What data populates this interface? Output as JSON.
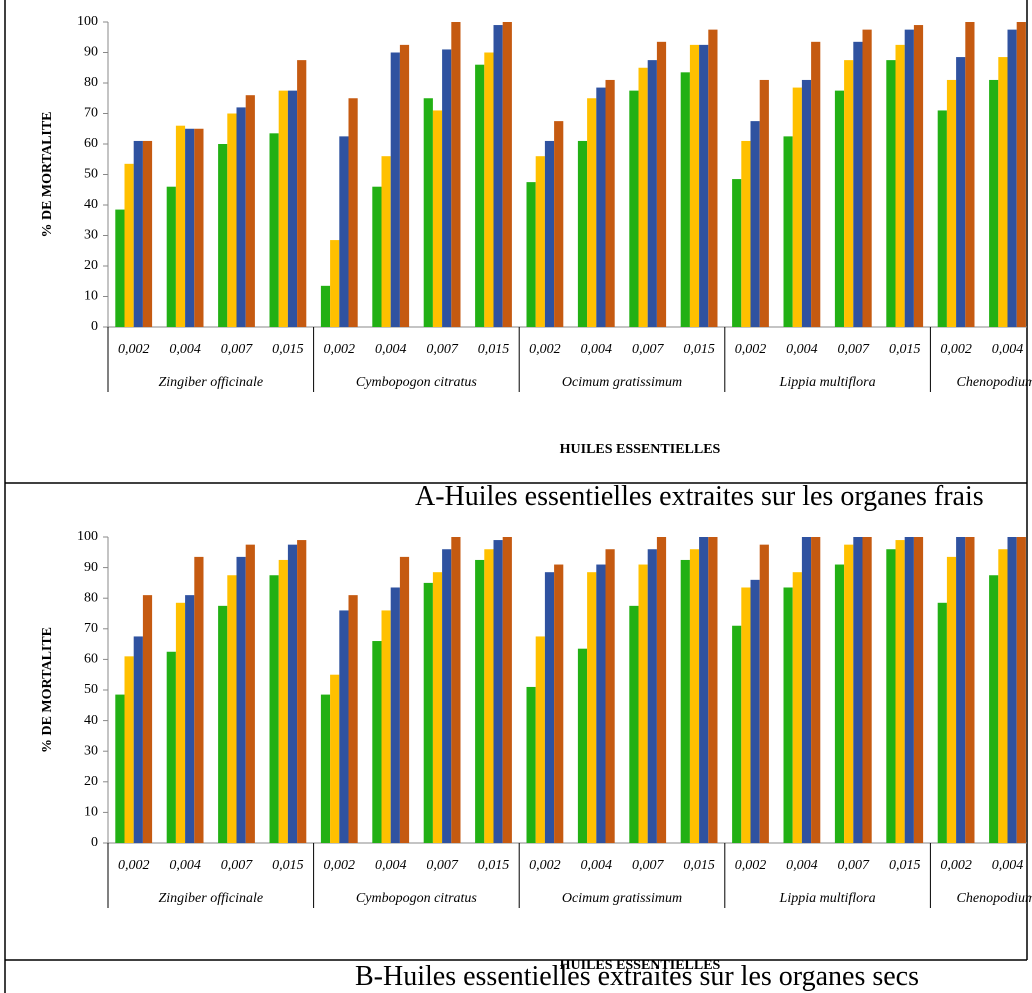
{
  "chart_data": [
    {
      "type": "bar",
      "y_label": "% DE MORTALITE",
      "x_label": "HUILES ESSENTIELLES",
      "caption": "A-Huiles essentielles extraites sur les organes frais",
      "categories": [
        "0,002",
        "0,004",
        "0,007",
        "0,015",
        "0,002",
        "0,004",
        "0,007",
        "0,015",
        "0,002",
        "0,004",
        "0,007",
        "0,015",
        "0,002",
        "0,004",
        "0,007",
        "0,015",
        "0,002",
        "0,004"
      ],
      "groups": [
        "Zingiber officinale",
        "Cymbopogon citratus",
        "Ocimum gratissimum",
        "Lippia multiflora",
        "Chenopodium"
      ],
      "series": [
        {
          "color": "#22b014",
          "values": [
            38.5,
            46,
            60,
            63.5,
            13.5,
            46,
            75,
            86,
            47.5,
            61,
            77.5,
            83.5,
            48.5,
            62.5,
            77.5,
            87.5,
            71,
            81
          ]
        },
        {
          "color": "#ffc000",
          "values": [
            53.5,
            66,
            70,
            77.5,
            28.5,
            56,
            71,
            90,
            56,
            75,
            85,
            92.5,
            61,
            78.5,
            87.5,
            92.5,
            81,
            88.5
          ]
        },
        {
          "color": "#2f52a0",
          "values": [
            61,
            65,
            72,
            77.5,
            62.5,
            90,
            91,
            99,
            61,
            78.5,
            87.5,
            92.5,
            67.5,
            81,
            93.5,
            97.5,
            88.5,
            97.5
          ]
        },
        {
          "color": "#c55a11",
          "values": [
            61,
            65,
            76,
            87.5,
            75,
            92.5,
            100,
            100,
            67.5,
            81,
            93.5,
            97.5,
            81,
            93.5,
            97.5,
            99,
            100,
            100
          ]
        }
      ],
      "ylim": [
        0,
        100
      ],
      "yticks": [
        0,
        10,
        20,
        30,
        40,
        50,
        60,
        70,
        80,
        90,
        100
      ]
    },
    {
      "type": "bar",
      "y_label": "% DE MORTALITE",
      "x_label": "HUILES ESSENTIELLES",
      "caption": "B-Huiles essentielles extraites sur les organes secs",
      "categories": [
        "0,002",
        "0,004",
        "0,007",
        "0,015",
        "0,002",
        "0,004",
        "0,007",
        "0,015",
        "0,002",
        "0,004",
        "0,007",
        "0,015",
        "0,002",
        "0,004",
        "0,007",
        "0,015",
        "0,002",
        "0,004"
      ],
      "groups": [
        "Zingiber officinale",
        "Cymbopogon citratus",
        "Ocimum gratissimum",
        "Lippia multiflora",
        "Chenopodium"
      ],
      "series": [
        {
          "color": "#22b014",
          "values": [
            48.5,
            62.5,
            77.5,
            87.5,
            48.5,
            66,
            85,
            92.5,
            51,
            63.5,
            77.5,
            92.5,
            71,
            83.5,
            91,
            96,
            78.5,
            87.5
          ]
        },
        {
          "color": "#ffc000",
          "values": [
            61,
            78.5,
            87.5,
            92.5,
            55,
            76,
            88.5,
            96,
            67.5,
            88.5,
            91,
            96,
            83.5,
            88.5,
            97.5,
            99,
            93.5,
            96
          ]
        },
        {
          "color": "#2f52a0",
          "values": [
            67.5,
            81,
            93.5,
            97.5,
            76,
            83.5,
            96,
            99,
            88.5,
            91,
            96,
            100,
            86,
            100,
            100,
            100,
            100,
            100
          ]
        },
        {
          "color": "#c55a11",
          "values": [
            81,
            93.5,
            97.5,
            99,
            81,
            93.5,
            100,
            100,
            91,
            96,
            100,
            100,
            97.5,
            100,
            100,
            100,
            100,
            100
          ]
        }
      ],
      "ylim": [
        0,
        100
      ],
      "yticks": [
        0,
        10,
        20,
        30,
        40,
        50,
        60,
        70,
        80,
        90,
        100
      ]
    }
  ]
}
